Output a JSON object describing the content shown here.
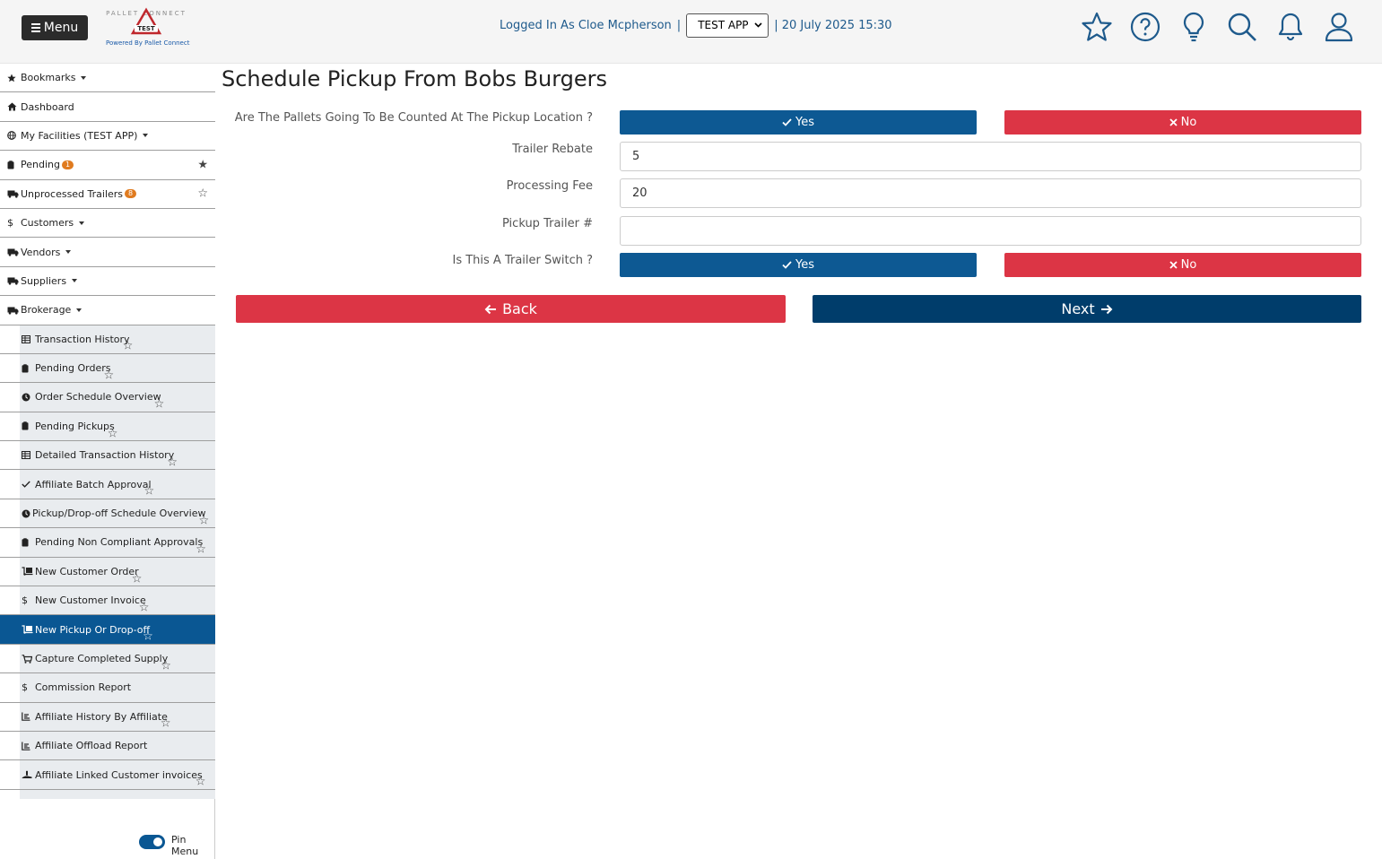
{
  "header": {
    "menu_label": "Menu",
    "logo_top": "PALLET CONNECT",
    "logo_badge": "TEST",
    "logo_sub": "Powered By Pallet Connect",
    "logged_in": "Logged In As Cloe Mcpherson",
    "separator": "|",
    "app_selected": "TEST APP",
    "datetime": "| 20 July 2025 15:30",
    "icons": [
      "star-icon",
      "help-icon",
      "lightbulb-icon",
      "search-icon",
      "bell-icon",
      "user-icon"
    ]
  },
  "sidebar": {
    "items": [
      {
        "label": "Bookmarks",
        "icon": "star-icon",
        "caret": true
      },
      {
        "label": "Dashboard",
        "icon": "home-icon"
      },
      {
        "label": "My Facilities (TEST APP)",
        "icon": "globe-icon",
        "caret": true
      },
      {
        "label": "Pending",
        "icon": "clipboard-icon",
        "badge": "1",
        "star": "filled"
      },
      {
        "label": "Unprocessed Trailers",
        "icon": "truck-icon",
        "badge": "8",
        "star": "outline"
      },
      {
        "label": "Customers",
        "icon": "dollar-icon",
        "caret": true
      },
      {
        "label": "Vendors",
        "icon": "truck-icon",
        "caret": true
      },
      {
        "label": "Suppliers",
        "icon": "truck-icon",
        "caret": true
      },
      {
        "label": "Brokerage",
        "icon": "truck-icon",
        "caret": true
      }
    ],
    "sub_items": [
      {
        "label": "Transaction History",
        "icon": "table-icon",
        "star": true
      },
      {
        "label": "Pending Orders",
        "icon": "clipboard-icon",
        "star": true
      },
      {
        "label": "Order Schedule Overview",
        "icon": "clock-icon",
        "star": true
      },
      {
        "label": "Pending Pickups",
        "icon": "clipboard-icon",
        "star": true
      },
      {
        "label": "Detailed Transaction History",
        "icon": "table-icon",
        "star": true
      },
      {
        "label": "Affiliate Batch Approval",
        "icon": "check-icon",
        "star": true
      },
      {
        "label": "Pickup/Drop-off Schedule Overview",
        "icon": "clock-icon",
        "star": true
      },
      {
        "label": "Pending Non Compliant Approvals",
        "icon": "clipboard-icon",
        "star": true
      },
      {
        "label": "New Customer Order",
        "icon": "dolly-icon",
        "star": true
      },
      {
        "label": "New Customer Invoice",
        "icon": "dollar-icon",
        "star": true
      },
      {
        "label": "New Pickup Or Drop-off",
        "icon": "dolly-icon",
        "star": true,
        "active": true
      },
      {
        "label": "Capture Completed Supply",
        "icon": "cart-icon",
        "star": true
      },
      {
        "label": "Commission Report",
        "icon": "dollar-icon",
        "star": false
      },
      {
        "label": "Affiliate History By Affiliate",
        "icon": "chart-icon",
        "star": true
      },
      {
        "label": "Affiliate Offload Report",
        "icon": "chart-icon",
        "star": false
      },
      {
        "label": "Affiliate Linked Customer invoices",
        "icon": "hand-icon",
        "star": true
      }
    ],
    "pin_label": "Pin Menu"
  },
  "main": {
    "title": "Schedule Pickup From Bobs Burgers",
    "q_counted": "Are The Pallets Going To Be Counted At The Pickup Location ?",
    "yes_label": "Yes",
    "no_label": "No",
    "trailer_rebate_label": "Trailer Rebate",
    "trailer_rebate_value": "5",
    "processing_fee_label": "Processing Fee",
    "processing_fee_value": "20",
    "pickup_trailer_label": "Pickup Trailer #",
    "pickup_trailer_value": "",
    "q_switch": "Is This A Trailer Switch ?",
    "back_label": "Back",
    "next_label": "Next"
  },
  "colors": {
    "primary": "#0d5993",
    "danger": "#dc3545",
    "next": "#003d6b",
    "active_menu": "#0a5793",
    "link_text": "#1e5a8c"
  }
}
